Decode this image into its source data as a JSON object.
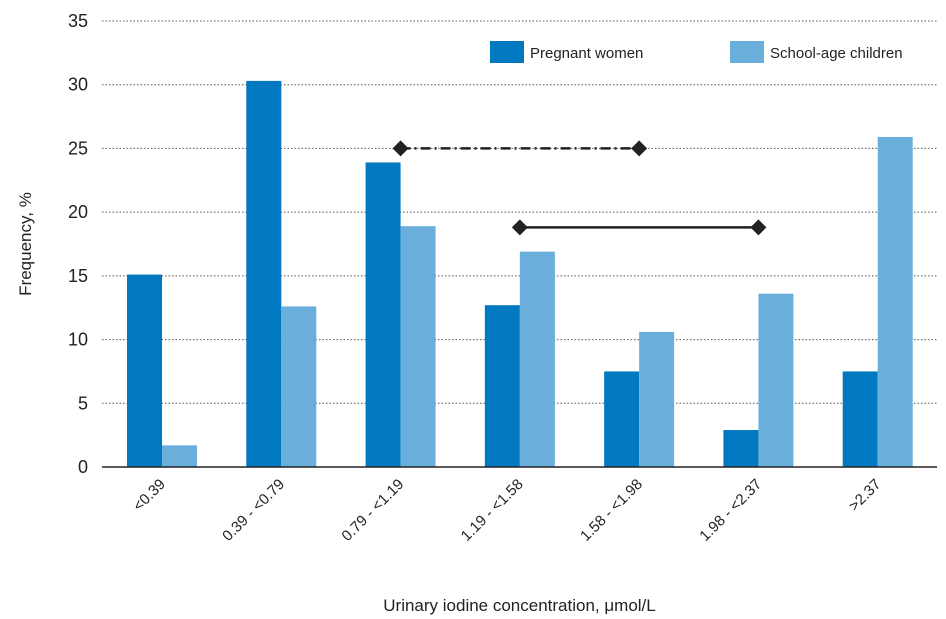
{
  "chart_data": {
    "type": "bar",
    "title": "",
    "xlabel": "Urinary iodine concentration, μmol/L",
    "ylabel": "Frequency, %",
    "ylim": [
      0,
      35
    ],
    "yticks": [
      0,
      5,
      10,
      15,
      20,
      25,
      30,
      35
    ],
    "grid": "horizontal dotted",
    "legend_position": "top-right",
    "categories": [
      "<0.39",
      "0.39 - <0.79",
      "0.79 - <1.19",
      "1.19 - <1.58",
      "1.58 - <1.98",
      "1.98 - <2.37",
      ">2.37"
    ],
    "series": [
      {
        "name": "Pregnant women",
        "color": "#0079c1",
        "values": [
          15.1,
          30.3,
          23.9,
          12.7,
          7.5,
          2.9,
          7.5
        ]
      },
      {
        "name": "School-age children",
        "color": "#6aafdb",
        "values": [
          1.7,
          12.6,
          18.9,
          16.9,
          10.6,
          13.6,
          25.9
        ]
      }
    ],
    "annotations": [
      {
        "style": "dash-dot",
        "marker": "diamond",
        "y": 25,
        "from_category": "0.79 - <1.19",
        "to_category": "1.58 - <1.98"
      },
      {
        "style": "solid",
        "marker": "diamond",
        "y": 18.8,
        "from_category": "1.19 - <1.58",
        "to_category": "1.98 - <2.37"
      }
    ]
  }
}
